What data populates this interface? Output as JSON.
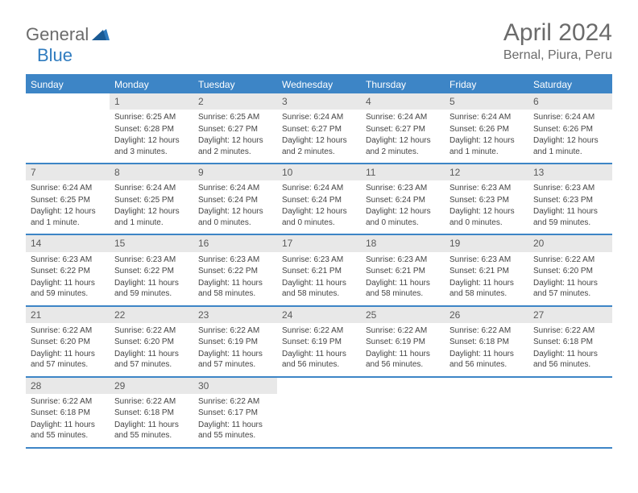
{
  "logo": {
    "text1": "General",
    "text2": "Blue"
  },
  "header": {
    "title": "April 2024",
    "location": "Bernal, Piura, Peru"
  },
  "colors": {
    "accent": "#3d85c6",
    "header_text": "#ffffff",
    "daynum_bg": "#e8e8e8",
    "body_text": "#444444",
    "title_text": "#6b6b6b"
  },
  "day_headers": [
    "Sunday",
    "Monday",
    "Tuesday",
    "Wednesday",
    "Thursday",
    "Friday",
    "Saturday"
  ],
  "weeks": [
    [
      {
        "num": "",
        "sunrise": "",
        "sunset": "",
        "daylight": ""
      },
      {
        "num": "1",
        "sunrise": "Sunrise: 6:25 AM",
        "sunset": "Sunset: 6:28 PM",
        "daylight": "Daylight: 12 hours and 3 minutes."
      },
      {
        "num": "2",
        "sunrise": "Sunrise: 6:25 AM",
        "sunset": "Sunset: 6:27 PM",
        "daylight": "Daylight: 12 hours and 2 minutes."
      },
      {
        "num": "3",
        "sunrise": "Sunrise: 6:24 AM",
        "sunset": "Sunset: 6:27 PM",
        "daylight": "Daylight: 12 hours and 2 minutes."
      },
      {
        "num": "4",
        "sunrise": "Sunrise: 6:24 AM",
        "sunset": "Sunset: 6:27 PM",
        "daylight": "Daylight: 12 hours and 2 minutes."
      },
      {
        "num": "5",
        "sunrise": "Sunrise: 6:24 AM",
        "sunset": "Sunset: 6:26 PM",
        "daylight": "Daylight: 12 hours and 1 minute."
      },
      {
        "num": "6",
        "sunrise": "Sunrise: 6:24 AM",
        "sunset": "Sunset: 6:26 PM",
        "daylight": "Daylight: 12 hours and 1 minute."
      }
    ],
    [
      {
        "num": "7",
        "sunrise": "Sunrise: 6:24 AM",
        "sunset": "Sunset: 6:25 PM",
        "daylight": "Daylight: 12 hours and 1 minute."
      },
      {
        "num": "8",
        "sunrise": "Sunrise: 6:24 AM",
        "sunset": "Sunset: 6:25 PM",
        "daylight": "Daylight: 12 hours and 1 minute."
      },
      {
        "num": "9",
        "sunrise": "Sunrise: 6:24 AM",
        "sunset": "Sunset: 6:24 PM",
        "daylight": "Daylight: 12 hours and 0 minutes."
      },
      {
        "num": "10",
        "sunrise": "Sunrise: 6:24 AM",
        "sunset": "Sunset: 6:24 PM",
        "daylight": "Daylight: 12 hours and 0 minutes."
      },
      {
        "num": "11",
        "sunrise": "Sunrise: 6:23 AM",
        "sunset": "Sunset: 6:24 PM",
        "daylight": "Daylight: 12 hours and 0 minutes."
      },
      {
        "num": "12",
        "sunrise": "Sunrise: 6:23 AM",
        "sunset": "Sunset: 6:23 PM",
        "daylight": "Daylight: 12 hours and 0 minutes."
      },
      {
        "num": "13",
        "sunrise": "Sunrise: 6:23 AM",
        "sunset": "Sunset: 6:23 PM",
        "daylight": "Daylight: 11 hours and 59 minutes."
      }
    ],
    [
      {
        "num": "14",
        "sunrise": "Sunrise: 6:23 AM",
        "sunset": "Sunset: 6:22 PM",
        "daylight": "Daylight: 11 hours and 59 minutes."
      },
      {
        "num": "15",
        "sunrise": "Sunrise: 6:23 AM",
        "sunset": "Sunset: 6:22 PM",
        "daylight": "Daylight: 11 hours and 59 minutes."
      },
      {
        "num": "16",
        "sunrise": "Sunrise: 6:23 AM",
        "sunset": "Sunset: 6:22 PM",
        "daylight": "Daylight: 11 hours and 58 minutes."
      },
      {
        "num": "17",
        "sunrise": "Sunrise: 6:23 AM",
        "sunset": "Sunset: 6:21 PM",
        "daylight": "Daylight: 11 hours and 58 minutes."
      },
      {
        "num": "18",
        "sunrise": "Sunrise: 6:23 AM",
        "sunset": "Sunset: 6:21 PM",
        "daylight": "Daylight: 11 hours and 58 minutes."
      },
      {
        "num": "19",
        "sunrise": "Sunrise: 6:23 AM",
        "sunset": "Sunset: 6:21 PM",
        "daylight": "Daylight: 11 hours and 58 minutes."
      },
      {
        "num": "20",
        "sunrise": "Sunrise: 6:22 AM",
        "sunset": "Sunset: 6:20 PM",
        "daylight": "Daylight: 11 hours and 57 minutes."
      }
    ],
    [
      {
        "num": "21",
        "sunrise": "Sunrise: 6:22 AM",
        "sunset": "Sunset: 6:20 PM",
        "daylight": "Daylight: 11 hours and 57 minutes."
      },
      {
        "num": "22",
        "sunrise": "Sunrise: 6:22 AM",
        "sunset": "Sunset: 6:20 PM",
        "daylight": "Daylight: 11 hours and 57 minutes."
      },
      {
        "num": "23",
        "sunrise": "Sunrise: 6:22 AM",
        "sunset": "Sunset: 6:19 PM",
        "daylight": "Daylight: 11 hours and 57 minutes."
      },
      {
        "num": "24",
        "sunrise": "Sunrise: 6:22 AM",
        "sunset": "Sunset: 6:19 PM",
        "daylight": "Daylight: 11 hours and 56 minutes."
      },
      {
        "num": "25",
        "sunrise": "Sunrise: 6:22 AM",
        "sunset": "Sunset: 6:19 PM",
        "daylight": "Daylight: 11 hours and 56 minutes."
      },
      {
        "num": "26",
        "sunrise": "Sunrise: 6:22 AM",
        "sunset": "Sunset: 6:18 PM",
        "daylight": "Daylight: 11 hours and 56 minutes."
      },
      {
        "num": "27",
        "sunrise": "Sunrise: 6:22 AM",
        "sunset": "Sunset: 6:18 PM",
        "daylight": "Daylight: 11 hours and 56 minutes."
      }
    ],
    [
      {
        "num": "28",
        "sunrise": "Sunrise: 6:22 AM",
        "sunset": "Sunset: 6:18 PM",
        "daylight": "Daylight: 11 hours and 55 minutes."
      },
      {
        "num": "29",
        "sunrise": "Sunrise: 6:22 AM",
        "sunset": "Sunset: 6:18 PM",
        "daylight": "Daylight: 11 hours and 55 minutes."
      },
      {
        "num": "30",
        "sunrise": "Sunrise: 6:22 AM",
        "sunset": "Sunset: 6:17 PM",
        "daylight": "Daylight: 11 hours and 55 minutes."
      },
      {
        "num": "",
        "sunrise": "",
        "sunset": "",
        "daylight": ""
      },
      {
        "num": "",
        "sunrise": "",
        "sunset": "",
        "daylight": ""
      },
      {
        "num": "",
        "sunrise": "",
        "sunset": "",
        "daylight": ""
      },
      {
        "num": "",
        "sunrise": "",
        "sunset": "",
        "daylight": ""
      }
    ]
  ]
}
